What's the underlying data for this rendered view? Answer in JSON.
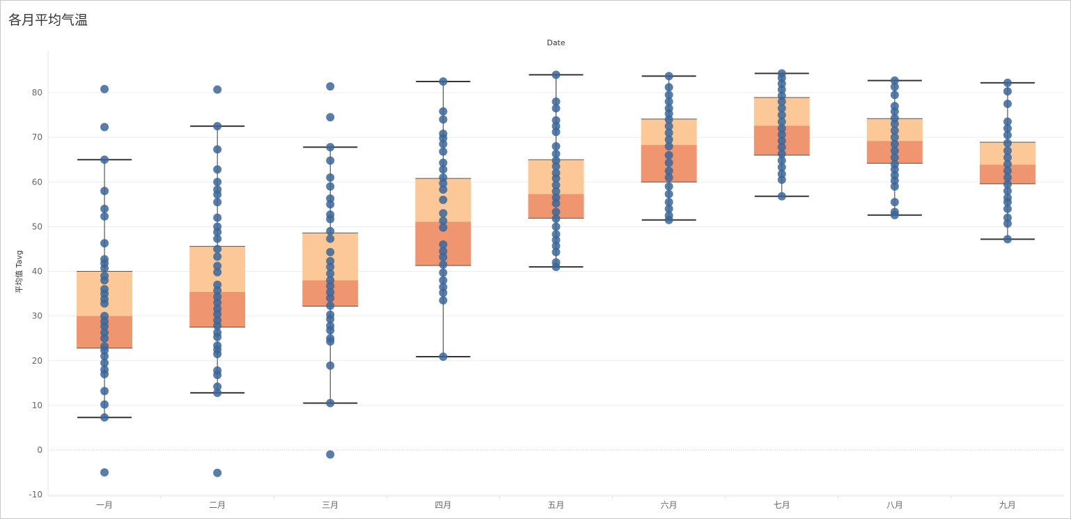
{
  "title": "各月平均气温",
  "chart_data": {
    "type": "box",
    "title": "各月平均气温",
    "xlabel": "Date",
    "ylabel": "平均值 Tavg",
    "ylim": [
      -11,
      90
    ],
    "yticks": [
      -10,
      0,
      10,
      20,
      30,
      40,
      50,
      60,
      70,
      80
    ],
    "grid": true,
    "categories": [
      "一月",
      "二月",
      "三月",
      "四月",
      "五月",
      "六月",
      "七月",
      "八月",
      "九月"
    ],
    "boxes": [
      {
        "whisker_low": 7.3,
        "q1": 22.8,
        "median": 30.0,
        "q3": 40.0,
        "whisker_high": 65.0,
        "points": [
          -5.0,
          7.3,
          10.2,
          13.2,
          17.0,
          18.0,
          19.5,
          21.0,
          22.3,
          23.2,
          25.0,
          26.3,
          27.7,
          28.8,
          30.0,
          32.8,
          33.8,
          35.0,
          36.0,
          38.0,
          39.0,
          40.7,
          41.8,
          42.7,
          46.3,
          52.3,
          54.0,
          58.0,
          65.0,
          72.3,
          80.8
        ]
      },
      {
        "whisker_low": 12.8,
        "q1": 27.5,
        "median": 35.4,
        "q3": 45.6,
        "whisker_high": 72.5,
        "points": [
          -5.1,
          12.8,
          14.2,
          16.8,
          17.8,
          21.5,
          22.5,
          23.4,
          25.3,
          26.3,
          27.8,
          29.0,
          30.4,
          31.6,
          33.0,
          34.3,
          35.7,
          37.0,
          39.8,
          41.2,
          43.3,
          45.0,
          47.3,
          48.8,
          50.0,
          52.0,
          55.5,
          57.2,
          58.3,
          60.0,
          62.8,
          67.3,
          72.5,
          80.7
        ]
      },
      {
        "whisker_low": 10.5,
        "q1": 32.2,
        "median": 38.0,
        "q3": 48.6,
        "whisker_high": 67.8,
        "points": [
          -1.0,
          10.5,
          18.9,
          24.3,
          25.0,
          26.8,
          27.8,
          29.3,
          30.3,
          32.3,
          34.0,
          35.3,
          36.7,
          38.0,
          39.5,
          41.0,
          42.3,
          44.3,
          47.3,
          49.0,
          51.7,
          52.7,
          55.0,
          56.3,
          59.0,
          61.0,
          64.8,
          67.8,
          74.5,
          81.4
        ]
      },
      {
        "whisker_low": 20.9,
        "q1": 41.3,
        "median": 51.1,
        "q3": 60.8,
        "whisker_high": 82.5,
        "points": [
          20.9,
          33.5,
          35.2,
          36.5,
          38.0,
          39.7,
          41.5,
          43.2,
          44.5,
          46.0,
          49.8,
          51.3,
          53.0,
          56.0,
          58.3,
          59.7,
          61.0,
          62.8,
          64.3,
          66.8,
          68.5,
          69.8,
          70.8,
          74.0,
          75.8,
          82.5
        ]
      },
      {
        "whisker_low": 41.0,
        "q1": 51.9,
        "median": 57.3,
        "q3": 65.0,
        "whisker_high": 84.0,
        "points": [
          41.0,
          42.0,
          44.3,
          45.7,
          47.0,
          48.3,
          50.0,
          51.8,
          53.3,
          55.2,
          56.5,
          57.9,
          59.3,
          60.8,
          62.0,
          63.5,
          64.8,
          66.3,
          68.0,
          71.2,
          72.5,
          73.8,
          76.5,
          78.0,
          84.0
        ]
      },
      {
        "whisker_low": 51.5,
        "q1": 60.0,
        "median": 68.3,
        "q3": 74.1,
        "whisker_high": 83.7,
        "points": [
          51.5,
          52.5,
          54.0,
          55.5,
          57.3,
          59.0,
          61.0,
          62.5,
          64.3,
          66.0,
          68.0,
          69.5,
          71.0,
          72.5,
          74.0,
          75.3,
          76.5,
          78.0,
          79.5,
          81.2,
          83.7
        ]
      },
      {
        "whisker_low": 56.8,
        "q1": 66.0,
        "median": 72.6,
        "q3": 78.9,
        "whisker_high": 84.3,
        "points": [
          56.8,
          60.5,
          61.8,
          63.3,
          64.8,
          66.3,
          67.8,
          69.2,
          70.6,
          72.0,
          73.5,
          75.0,
          76.5,
          78.0,
          79.3,
          80.7,
          82.0,
          83.3,
          84.3
        ]
      },
      {
        "whisker_low": 52.6,
        "q1": 64.2,
        "median": 69.2,
        "q3": 74.2,
        "whisker_high": 82.7,
        "points": [
          52.6,
          53.3,
          55.5,
          59.0,
          60.3,
          61.5,
          62.8,
          64.0,
          65.5,
          67.0,
          68.5,
          70.0,
          71.5,
          73.0,
          74.3,
          75.8,
          77.0,
          79.5,
          81.3,
          82.7
        ]
      },
      {
        "whisker_low": 47.2,
        "q1": 59.6,
        "median": 63.9,
        "q3": 68.9,
        "whisker_high": 82.2,
        "points": [
          47.2,
          50.7,
          52.0,
          54.0,
          55.5,
          56.5,
          58.0,
          59.5,
          61.0,
          62.5,
          64.0,
          65.5,
          67.0,
          68.7,
          70.5,
          72.0,
          73.5,
          77.5,
          80.3,
          82.2
        ]
      }
    ],
    "colors": {
      "box_upper": "#fdc898",
      "box_lower": "#ef9570",
      "point": "#3a6699",
      "whisker": "#333333",
      "grid": "#eeeeee",
      "zero_line": "#c8c8c8"
    }
  }
}
